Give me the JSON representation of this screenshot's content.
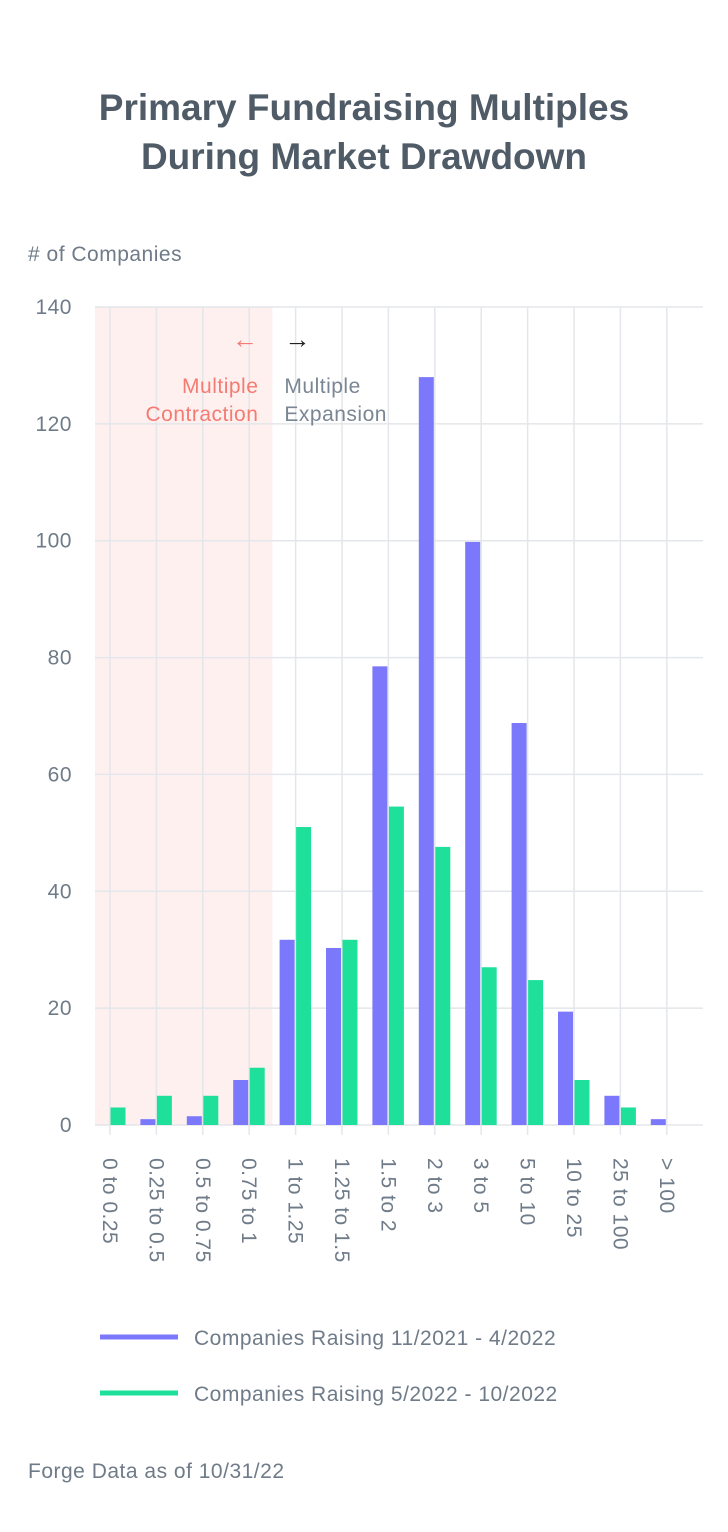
{
  "chart_data": {
    "type": "bar",
    "title": [
      "Primary Fundraising Multiples",
      "During Market Drawdown"
    ],
    "ylabel": "# of Companies",
    "categories": [
      "0 to 0.25",
      "0.25 to 0.5",
      "0.5 to 0.75",
      "0.75 to 1",
      "1 to 1.25",
      "1.25 to 1.5",
      "1.5 to 2",
      "2 to 3",
      "3 to 5",
      "5 to 10",
      "10 to 25",
      "25 to 100",
      "> 100"
    ],
    "series": [
      {
        "name": "Companies Raising 11/2021 - 4/2022",
        "color": "#7b78fb",
        "values": [
          0,
          1,
          1.5,
          7.7,
          31.7,
          30.3,
          78.5,
          128,
          99.8,
          68.8,
          19.4,
          5,
          1
        ]
      },
      {
        "name": "Companies Raising 5/2022 - 10/2022",
        "color": "#1ee09a",
        "values": [
          3,
          5,
          5,
          9.8,
          51,
          31.7,
          54.5,
          47.6,
          27,
          24.8,
          7.7,
          3,
          0
        ]
      }
    ],
    "ylim": [
      0,
      140
    ],
    "yticks": [
      0,
      20,
      40,
      60,
      80,
      100,
      120,
      140
    ],
    "grid": true,
    "annotations": [
      {
        "lines": [
          "Multiple",
          "Contraction"
        ],
        "arrow": "←",
        "color": "#f47b72"
      },
      {
        "lines": [
          "Multiple",
          "Expansion"
        ],
        "arrow": "→",
        "color": "#7a8694"
      }
    ],
    "source": "Forge Data as of 10/31/22"
  }
}
